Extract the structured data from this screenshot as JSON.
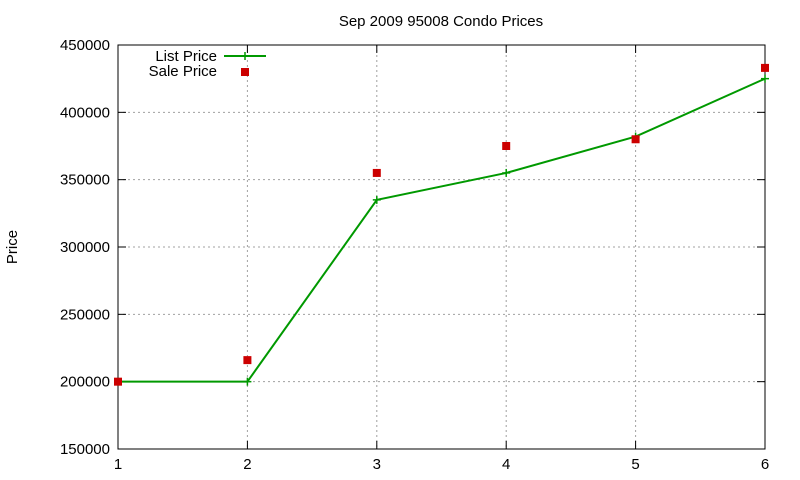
{
  "chart_data": {
    "type": "line",
    "title": "Sep 2009 95008 Condo Prices",
    "xlabel": "",
    "ylabel": "Price",
    "x": [
      1,
      2,
      3,
      4,
      5,
      6
    ],
    "xlim": [
      1,
      6
    ],
    "ylim": [
      150000,
      450000
    ],
    "xticks": [
      1,
      2,
      3,
      4,
      5,
      6
    ],
    "yticks": [
      150000,
      200000,
      250000,
      300000,
      350000,
      400000,
      450000
    ],
    "grid": true,
    "legend_position": "top-left",
    "series": [
      {
        "name": "List Price",
        "style": "line+cross-markers",
        "color": "#009900",
        "values": [
          200000,
          200000,
          335000,
          355000,
          382000,
          425000
        ]
      },
      {
        "name": "Sale Price",
        "style": "square-markers",
        "color": "#cc0000",
        "values": [
          200000,
          216000,
          355000,
          375000,
          380000,
          433000
        ]
      }
    ]
  }
}
